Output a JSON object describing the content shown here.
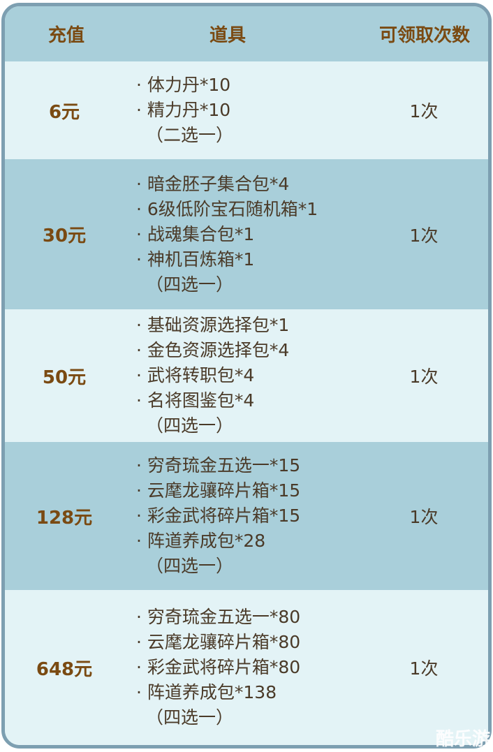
{
  "table": {
    "header": [
      "充值",
      "道具",
      "可领取次数"
    ],
    "rows": [
      {
        "recharge": "6元",
        "items": [
          "· 体力丹*10",
          "· 精力丹*10",
          "（二选一）"
        ],
        "count": "1次"
      },
      {
        "recharge": "30元",
        "items": [
          "· 暗金胚子集合包*4",
          "· 6级低阶宝石随机箱*1",
          "· 战魂集合包*1",
          "· 神机百炼箱*1",
          "（四选一）"
        ],
        "count": "1次"
      },
      {
        "recharge": "50元",
        "items": [
          "· 基础资源选择包*1",
          "· 金色资源选择包*4",
          "· 武将转职包*4",
          "· 名将图鉴包*4",
          "（四选一）"
        ],
        "count": "1次"
      },
      {
        "recharge": "128元",
        "items": [
          "· 穷奇琉金五选一*15",
          "· 云麾龙骧碎片箱*15",
          "· 彩金武将碎片箱*15",
          "· 阵道养成包*28",
          "（四选一）"
        ],
        "count": "1次"
      },
      {
        "recharge": "648元",
        "items": [
          "· 穷奇琉金五选一*80",
          "· 云麾龙骧碎片箱*80",
          "· 彩金武将碎片箱*80",
          "· 阵道养成包*138",
          "（四选一）"
        ],
        "count": "1次"
      }
    ]
  },
  "watermark": "酷乐游"
}
